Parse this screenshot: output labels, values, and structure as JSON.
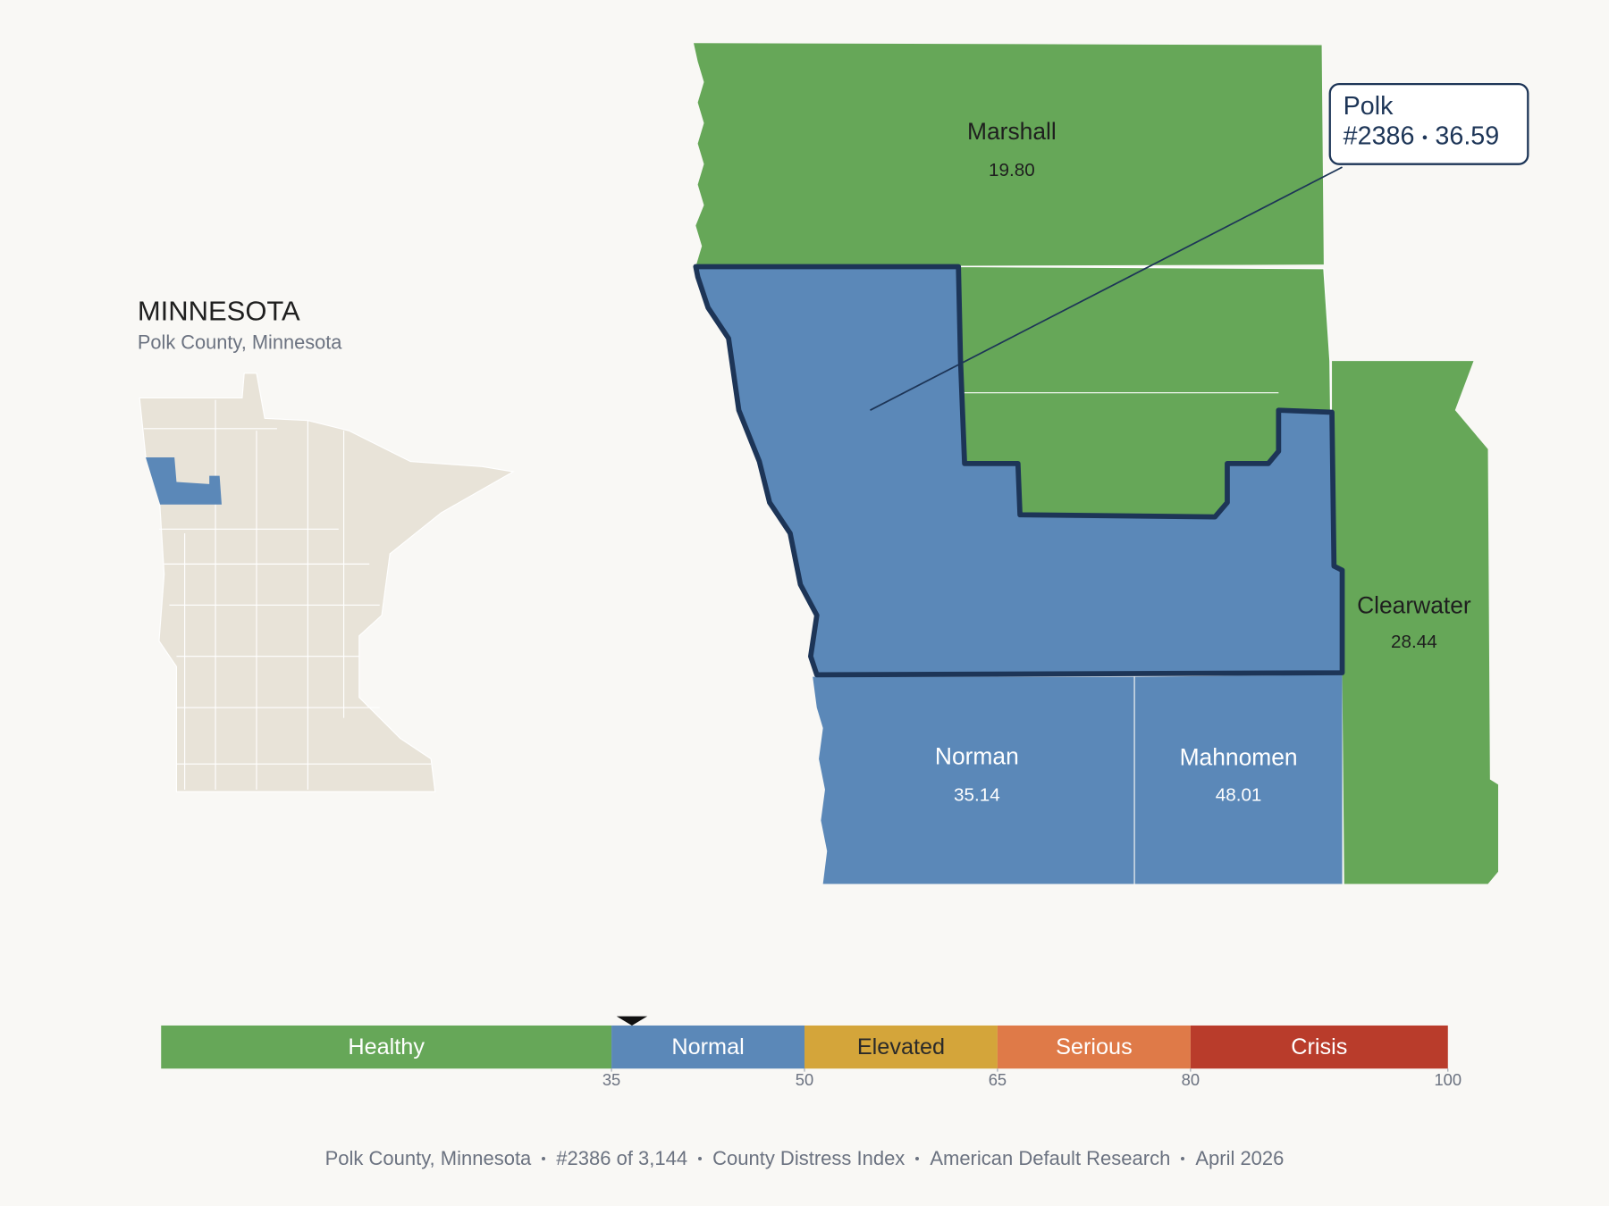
{
  "header": {
    "title": "MINNESOTA",
    "subtitle": "Polk County, Minnesota"
  },
  "counties": [
    {
      "name": "Marshall",
      "score": "19.80"
    },
    {
      "name": "Clearwater",
      "score": "28.44"
    },
    {
      "name": "Norman",
      "score": "35.14"
    },
    {
      "name": "Mahnomen",
      "score": "48.01"
    }
  ],
  "callout": {
    "name": "Polk",
    "rank": "#2386",
    "score": 36.59
  },
  "scale": {
    "lim": [
      0,
      100
    ],
    "ticks": [
      35,
      50,
      65,
      80,
      100
    ],
    "bands": [
      {
        "label": "Healthy",
        "color": "#66a758",
        "text_color": "#ffffff"
      },
      {
        "label": "Normal",
        "color": "#5b88b8",
        "text_color": "#ffffff"
      },
      {
        "label": "Elevated",
        "color": "#d4a53a",
        "text_color": "#2a2a2a"
      },
      {
        "label": "Serious",
        "color": "#df7a48",
        "text_color": "#ffffff"
      },
      {
        "label": "Crisis",
        "color": "#b93c2b",
        "text_color": "#ffffff"
      }
    ]
  },
  "footer": [
    "Polk County, Minnesota",
    "#2386 of 3,144",
    "County Distress Index",
    "American Default Research",
    "April 2026"
  ]
}
